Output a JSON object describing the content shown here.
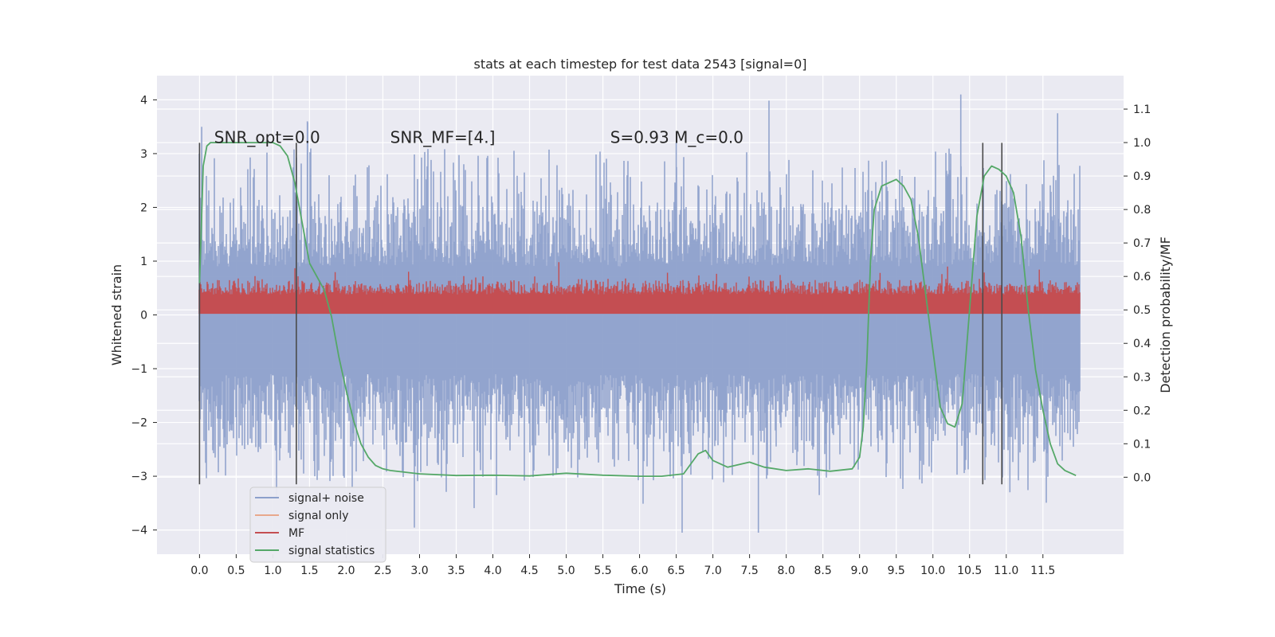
{
  "chart_data": {
    "type": "line",
    "title": "stats at each timestep for test data 2543 [signal=0]",
    "xlabel": "Time (s)",
    "ylabel": "Whitened strain",
    "y2label": "Detection probability/MF",
    "xlim": [
      -0.58,
      12.6
    ],
    "ylim": [
      -4.45,
      4.45
    ],
    "y2lim": [
      -0.23,
      1.2
    ],
    "x_ticks": [
      0.0,
      0.5,
      1.0,
      1.5,
      2.0,
      2.5,
      3.0,
      3.5,
      4.0,
      4.5,
      5.0,
      5.5,
      6.0,
      6.5,
      7.0,
      7.5,
      8.0,
      8.5,
      9.0,
      9.5,
      10.0,
      10.5,
      11.0,
      11.5
    ],
    "x_tick_labels": [
      "0.0",
      "0.5",
      "1.0",
      "1.5",
      "2.0",
      "2.5",
      "3.0",
      "3.5",
      "4.0",
      "4.5",
      "5.0",
      "5.5",
      "6.0",
      "6.5",
      "7.0",
      "7.5",
      "8.0",
      "8.5",
      "9.0",
      "9.5",
      "10.0",
      "10.5",
      "11.0",
      "11.5"
    ],
    "y_ticks": [
      -4,
      -3,
      -2,
      -1,
      0,
      1,
      2,
      3,
      4
    ],
    "y_tick_labels": [
      "−4",
      "−3",
      "−2",
      "−1",
      "0",
      "1",
      "2",
      "3",
      "4"
    ],
    "y2_ticks": [
      0.0,
      0.1,
      0.2,
      0.3,
      0.4,
      0.5,
      0.6,
      0.7,
      0.8,
      0.9,
      1.0,
      1.1
    ],
    "y2_tick_labels": [
      "0.0",
      "0.1",
      "0.2",
      "0.3",
      "0.4",
      "0.5",
      "0.6",
      "0.7",
      "0.8",
      "0.9",
      "1.0",
      "1.1"
    ],
    "grid": true,
    "legend_position": "bottom-left",
    "annotations": [
      {
        "text": "SNR_opt=0.0",
        "x": 0.2,
        "y": 3.3
      },
      {
        "text": "SNR_MF=[4.]",
        "x": 2.6,
        "y": 3.3
      },
      {
        "text": "S=0.93   M_c=0.0",
        "x": 5.6,
        "y": 3.3
      }
    ],
    "vertical_lines": [
      {
        "x": 0.0,
        "y_range": [
          -3.15,
          3.2
        ]
      },
      {
        "x": 1.32,
        "y_range": [
          -3.15,
          3.2
        ]
      },
      {
        "x": 10.68,
        "y_range": [
          -3.15,
          3.2
        ]
      },
      {
        "x": 10.94,
        "y_range": [
          -3.15,
          3.2
        ]
      }
    ],
    "noise_envelope": {
      "x_range": [
        0.0,
        12.0
      ],
      "typical_max": 2.0,
      "typical_min": -2.2,
      "peaks": [
        {
          "x": 1.47,
          "y": 3.6
        },
        {
          "x": 10.38,
          "y": 4.1
        },
        {
          "x": 11.7,
          "y": 3.75
        },
        {
          "x": 0.03,
          "y": 3.5
        },
        {
          "x": 6.5,
          "y": 3.2
        },
        {
          "x": 6.58,
          "y": -4.05
        },
        {
          "x": 7.62,
          "y": -4.05
        },
        {
          "x": 1.05,
          "y": -3.4
        },
        {
          "x": 4.05,
          "y": -3.35
        },
        {
          "x": 8.45,
          "y": -3.35
        },
        {
          "x": 11.05,
          "y": -3.3
        }
      ]
    },
    "mf_band": {
      "x_range": [
        0.0,
        12.0
      ],
      "min": 0.02,
      "max": 0.65,
      "peaks": [
        0.63,
        1.0
      ]
    },
    "series": [
      {
        "name": "signal statistics",
        "axis": "right",
        "x": [
          0.0,
          0.05,
          0.1,
          0.15,
          0.2,
          0.3,
          0.5,
          0.8,
          1.0,
          1.1,
          1.2,
          1.3,
          1.4,
          1.5,
          1.6,
          1.7,
          1.8,
          1.9,
          2.0,
          2.1,
          2.2,
          2.3,
          2.4,
          2.5,
          2.6,
          2.8,
          3.0,
          3.5,
          4.0,
          4.5,
          5.0,
          5.5,
          6.0,
          6.3,
          6.6,
          6.8,
          6.9,
          7.0,
          7.2,
          7.4,
          7.5,
          7.7,
          8.0,
          8.3,
          8.6,
          8.9,
          9.0,
          9.05,
          9.1,
          9.15,
          9.2,
          9.3,
          9.4,
          9.5,
          9.6,
          9.7,
          9.8,
          9.9,
          10.0,
          10.1,
          10.2,
          10.3,
          10.4,
          10.5,
          10.6,
          10.7,
          10.8,
          10.9,
          11.0,
          11.1,
          11.2,
          11.3,
          11.4,
          11.5,
          11.6,
          11.7,
          11.8,
          11.9,
          11.95
        ],
        "values": [
          0.58,
          0.93,
          0.99,
          1.0,
          1.0,
          1.0,
          1.0,
          1.0,
          1.0,
          0.99,
          0.96,
          0.88,
          0.76,
          0.64,
          0.6,
          0.56,
          0.48,
          0.36,
          0.26,
          0.17,
          0.1,
          0.06,
          0.035,
          0.025,
          0.02,
          0.015,
          0.01,
          0.005,
          0.006,
          0.004,
          0.012,
          0.006,
          0.003,
          0.003,
          0.01,
          0.07,
          0.08,
          0.05,
          0.03,
          0.04,
          0.045,
          0.03,
          0.02,
          0.025,
          0.018,
          0.025,
          0.06,
          0.15,
          0.35,
          0.65,
          0.8,
          0.87,
          0.88,
          0.89,
          0.87,
          0.83,
          0.72,
          0.55,
          0.38,
          0.21,
          0.16,
          0.15,
          0.22,
          0.5,
          0.78,
          0.9,
          0.93,
          0.92,
          0.9,
          0.85,
          0.72,
          0.5,
          0.32,
          0.2,
          0.1,
          0.04,
          0.02,
          0.01,
          0.005
        ],
        "color": "#55a868"
      }
    ],
    "legend": [
      {
        "name": "signal+ noise",
        "color": "#8da0cb"
      },
      {
        "name": "signal only",
        "color": "#e8a88c"
      },
      {
        "name": "MF",
        "color": "#c44e52"
      },
      {
        "name": "signal statistics",
        "color": "#55a868"
      }
    ],
    "colors": {
      "plot_background": "#eaeaf2",
      "grid": "#ffffff",
      "noise": "#8da0cb",
      "mf": "#c44e52",
      "statistic": "#55a868",
      "vline": "#4a4a4a",
      "text": "#262626"
    }
  }
}
